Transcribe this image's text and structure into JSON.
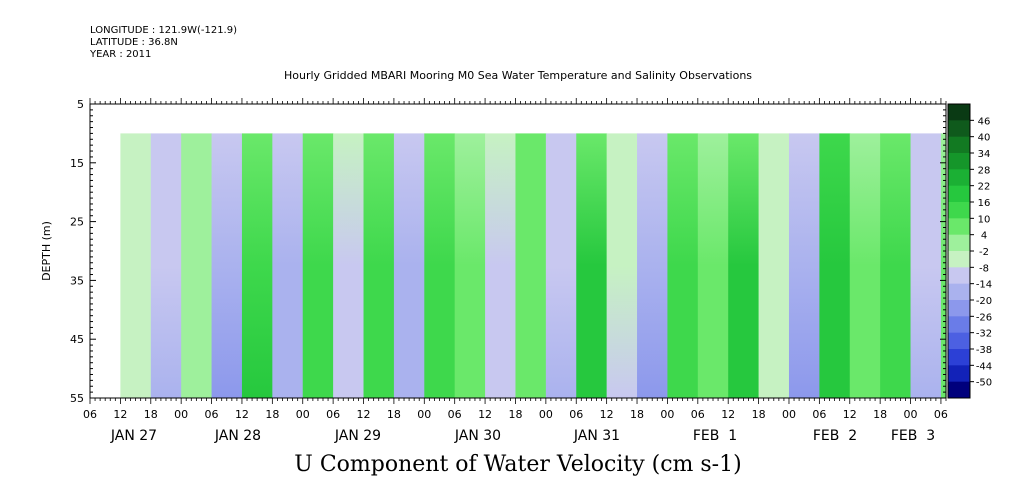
{
  "header": {
    "longitude": "LONGITUDE : 121.9W(-121.9)",
    "latitude": "LATITUDE : 36.8N",
    "year": "YEAR : 2011",
    "title": "Hourly Gridded MBARI Mooring M0 Sea Water Temperature and Salinity Observations"
  },
  "chart_data": {
    "type": "heatmap",
    "title": "Hourly Gridded MBARI Mooring M0 Sea Water Temperature and Salinity Observations",
    "variable_label": "U Component of Water Velocity (cm s-1)",
    "ylabel": "DEPTH (m)",
    "y_inverted": true,
    "ylim": [
      5,
      55
    ],
    "y_ticks": [
      5,
      15,
      25,
      35,
      45,
      55
    ],
    "data_depth_range": [
      10,
      55
    ],
    "x_range_hours": [
      "2011-01-27 06:00",
      "2011-02-03 07:00"
    ],
    "data_start": "2011-01-27 12:00",
    "x_hour_ticks": [
      "06",
      "12",
      "18",
      "00",
      "06",
      "12",
      "18",
      "00",
      "06",
      "12",
      "18",
      "00",
      "06",
      "12",
      "18",
      "00",
      "06",
      "12",
      "18",
      "00",
      "06",
      "12",
      "18",
      "00",
      "06",
      "12",
      "18",
      "00",
      "06"
    ],
    "x_day_labels": [
      "JAN 27",
      "JAN 28",
      "JAN 29",
      "JAN 30",
      "JAN 31",
      "FEB  1",
      "FEB  2",
      "FEB  3"
    ],
    "colorbar": {
      "levels": [
        "46",
        "40",
        "34",
        "28",
        "22",
        "16",
        "10",
        "4",
        "-2",
        "-8",
        "-14",
        "-20",
        "-26",
        "-32",
        "-38",
        "-44",
        "-50"
      ],
      "colors": [
        "#0a3a14",
        "#0f5a1c",
        "#127a22",
        "#15962a",
        "#1bb034",
        "#26c83e",
        "#3ed84c",
        "#6ae86a",
        "#9ef09c",
        "#c6f2c2",
        "#c8c8f0",
        "#aab2ee",
        "#8c98ec",
        "#6a7ce8",
        "#4c60e2",
        "#2c40d6",
        "#1222b8",
        "#00007c"
      ]
    },
    "series": [
      {
        "profile": [
          {
            "time": "2011-01-27 12:00",
            "u": -6
          },
          {
            "time": "2011-01-27 18:00",
            "u": -14
          },
          {
            "time": "2011-01-28 00:00",
            "u": 2
          },
          {
            "time": "2011-01-28 06:00",
            "u": -18
          },
          {
            "time": "2011-01-28 12:00",
            "u": 14
          },
          {
            "time": "2011-01-28 18:00",
            "u": -16
          },
          {
            "time": "2011-01-29 00:00",
            "u": 12
          },
          {
            "time": "2011-01-29 06:00",
            "u": -10
          },
          {
            "time": "2011-01-29 12:00",
            "u": 12
          },
          {
            "time": "2011-01-29 18:00",
            "u": -16
          },
          {
            "time": "2011-01-30 00:00",
            "u": 10
          },
          {
            "time": "2011-01-30 06:00",
            "u": 4
          },
          {
            "time": "2011-01-30 12:00",
            "u": -12
          },
          {
            "time": "2011-01-30 18:00",
            "u": 8
          },
          {
            "time": "2011-01-31 00:00",
            "u": -14
          },
          {
            "time": "2011-01-31 06:00",
            "u": 16
          },
          {
            "time": "2011-01-31 12:00",
            "u": -8
          },
          {
            "time": "2011-01-31 18:00",
            "u": -18
          },
          {
            "time": "2011-02-01 00:00",
            "u": 12
          },
          {
            "time": "2011-02-01 06:00",
            "u": 6
          },
          {
            "time": "2011-02-01 12:00",
            "u": 16
          },
          {
            "time": "2011-02-01 18:00",
            "u": -4
          },
          {
            "time": "2011-02-02 00:00",
            "u": -20
          },
          {
            "time": "2011-02-02 06:00",
            "u": 18
          },
          {
            "time": "2011-02-02 12:00",
            "u": 4
          },
          {
            "time": "2011-02-02 18:00",
            "u": 10
          },
          {
            "time": "2011-02-03 00:00",
            "u": -14
          },
          {
            "time": "2011-02-03 06:00",
            "u": 6
          }
        ]
      }
    ]
  }
}
